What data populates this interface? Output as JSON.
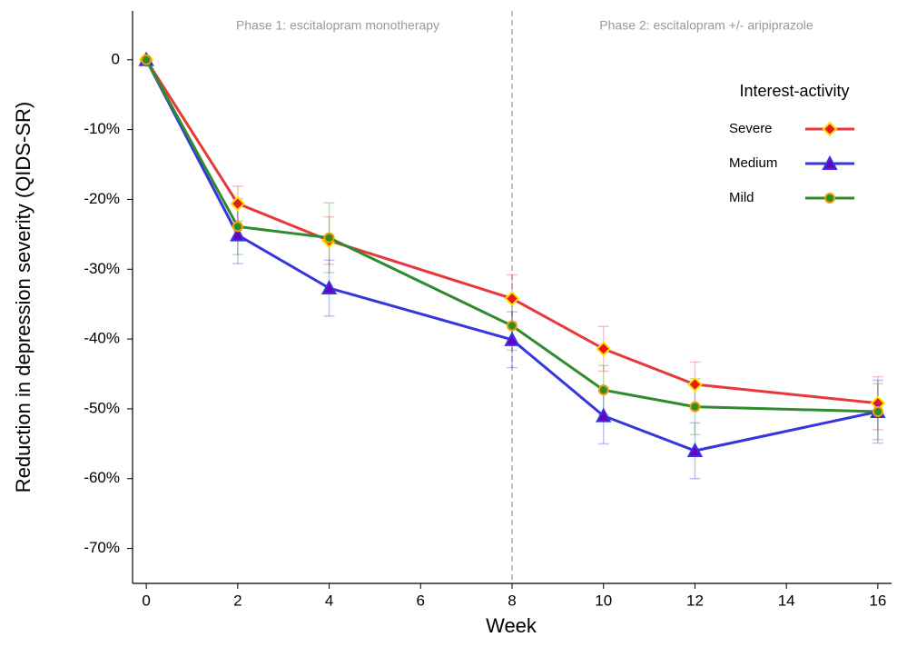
{
  "chart_data": {
    "type": "line",
    "xlabel": "Week",
    "ylabel": "Reduction in depression severity (QIDS-SR)",
    "annotations": [
      "Phase 1: escitalopram monotherapy",
      "Phase 2: escitalopram +/- aripiprazole"
    ],
    "vline": 8,
    "legend_title": "Interest-activity",
    "legend": "upper right",
    "x": [
      0,
      2,
      4,
      8,
      10,
      12,
      16
    ],
    "series": [
      {
        "name": "Severe",
        "color": "#e8393a",
        "marker": "diamond",
        "marker_face": "#e8191a",
        "marker_edge": "#ffe000",
        "values": [
          0,
          -20.6,
          -25.9,
          -34.2,
          -41.4,
          -46.5,
          -49.2
        ],
        "errors": [
          0,
          2.5,
          3.4,
          3.4,
          3.2,
          3.2,
          3.8
        ]
      },
      {
        "name": "Medium",
        "color": "#3636e0",
        "marker": "triangle",
        "marker_face": "#6a00c0",
        "marker_edge": "#3636e0",
        "values": [
          0,
          -25.1,
          -32.7,
          -40.1,
          -51,
          -56,
          -50.4
        ],
        "errors": [
          0,
          4.1,
          4,
          4,
          4,
          4,
          4.5
        ]
      },
      {
        "name": "Mild",
        "color": "#2e8b2e",
        "marker": "circle",
        "marker_face": "#2e8b2e",
        "marker_edge": "#f0a000",
        "values": [
          0,
          -23.9,
          -25.5,
          -38.1,
          -47.3,
          -49.7,
          -50.4
        ],
        "errors": [
          0,
          4,
          5,
          3.5,
          3.5,
          4,
          4
        ]
      }
    ],
    "xlim": [
      -0.3,
      16.3
    ],
    "xticks": [
      0,
      2,
      4,
      6,
      8,
      10,
      12,
      14,
      16
    ],
    "ylim": [
      -75,
      7
    ],
    "yticks": [
      {
        "value": -70,
        "label": "-70%"
      },
      {
        "value": -60,
        "label": "-60%"
      },
      {
        "value": -50,
        "label": "-50%"
      },
      {
        "value": -40,
        "label": "-40%"
      },
      {
        "value": -30,
        "label": "-30%"
      },
      {
        "value": -20,
        "label": "-20%"
      },
      {
        "value": -10,
        "label": "-10%"
      },
      0
    ]
  }
}
